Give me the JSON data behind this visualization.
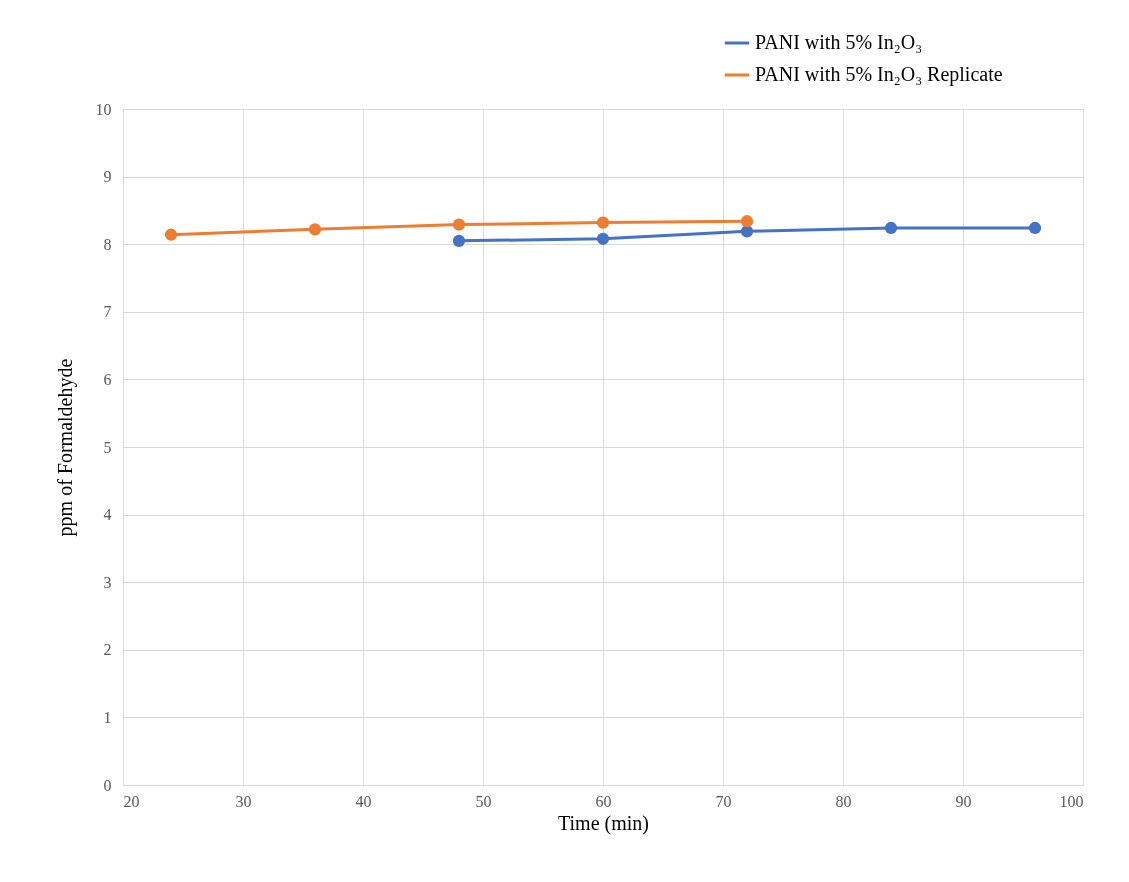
{
  "chart_data": {
    "type": "line",
    "xlabel": "Time (min)",
    "ylabel": "ppm of Formaldehyde",
    "xlim": [
      20,
      100
    ],
    "xticks": [
      20,
      30,
      40,
      50,
      60,
      70,
      80,
      90,
      100
    ],
    "ylim": [
      0,
      10
    ],
    "yticks": [
      0,
      1,
      2,
      3,
      4,
      5,
      6,
      7,
      8,
      9,
      10
    ],
    "grid": true,
    "legend": "top right",
    "marker": "circle",
    "line_style": "solid",
    "series": [
      {
        "name": "PANI with 5% In₂O₃",
        "color": "#4472c4",
        "x": [
          48,
          60,
          72,
          84,
          96
        ],
        "values": [
          8.05,
          8.08,
          8.19,
          8.24,
          8.24
        ]
      },
      {
        "name": "PANI with 5% In₂O₃ Replicate",
        "color": "#ed7d31",
        "x": [
          24,
          36,
          48,
          60,
          72
        ],
        "values": [
          8.14,
          8.22,
          8.29,
          8.32,
          8.34
        ]
      }
    ]
  }
}
